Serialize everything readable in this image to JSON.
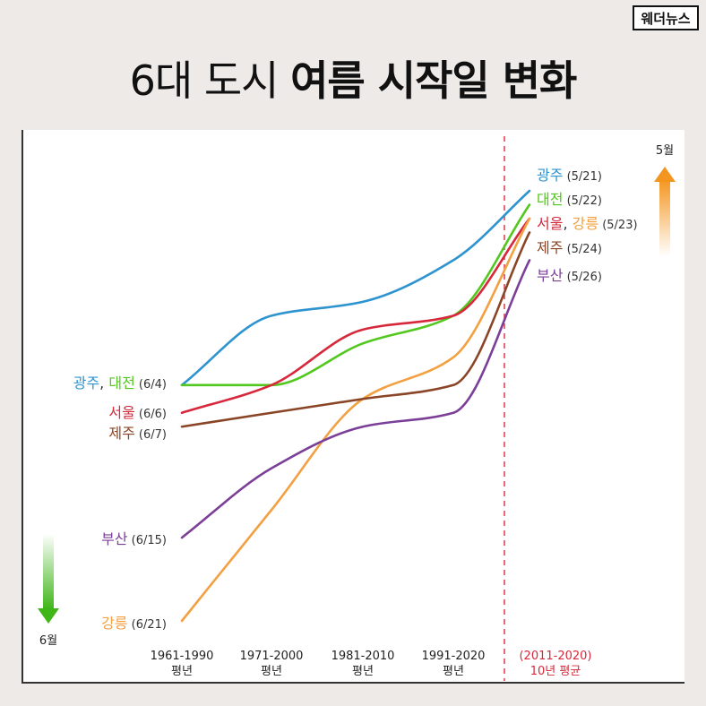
{
  "brand": "웨더뉴스",
  "title": {
    "regular": "6대 도시",
    "bold": "여름 시작일 변화"
  },
  "chart_data": {
    "type": "line",
    "categories": [
      "1961-1990 평년",
      "1971-2000 평년",
      "1981-2010 평년",
      "1991-2020 평년",
      "(2011-2020) 10년 평균"
    ],
    "x_labels": [
      {
        "line1": "1961-1990",
        "line2": "평년"
      },
      {
        "line1": "1971-2000",
        "line2": "평년"
      },
      {
        "line1": "1981-2010",
        "line2": "평년"
      },
      {
        "line1": "1991-2020",
        "line2": "평년"
      },
      {
        "line1": "(2011-2020)",
        "line2": "10년 평균"
      }
    ],
    "y_axis": {
      "top_label": "5월",
      "bottom_label": "6월",
      "inverted": true
    },
    "series": [
      {
        "name": "광주",
        "color": "#2e94d0",
        "values": [
          "06-04",
          "05-30",
          "05-29",
          "05-26",
          "05-21"
        ],
        "start_label": "(6/4)",
        "end_label": "(5/21)"
      },
      {
        "name": "대전",
        "color": "#52c81e",
        "values": [
          "06-04",
          "06-04",
          "06-01",
          "05-30",
          "05-22"
        ],
        "start_label": "(6/4)",
        "end_label": "(5/22)"
      },
      {
        "name": "서울",
        "color": "#d7283b",
        "values": [
          "06-06",
          "06-04",
          "05-31",
          "05-30",
          "05-23"
        ],
        "start_label": "(6/6)",
        "end_label": "(5/23)"
      },
      {
        "name": "강릉",
        "color": "#f2a042",
        "values": [
          "06-21",
          "06-13",
          "06-05",
          "06-02",
          "05-23"
        ],
        "start_label": "(6/21)",
        "end_label": "(5/23)"
      },
      {
        "name": "제주",
        "color": "#8a4526",
        "values": [
          "06-07",
          "06-06",
          "06-05",
          "06-04",
          "05-24"
        ],
        "start_label": "(6/7)",
        "end_label": "(5/24)"
      },
      {
        "name": "부산",
        "color": "#7b3f98",
        "values": [
          "06-15",
          "06-10",
          "06-07",
          "06-06",
          "05-26"
        ],
        "start_label": "(6/15)",
        "end_label": "(5/26)"
      }
    ],
    "separator": {
      "before_category": 4,
      "style": "dashed",
      "color": "#e0445a"
    },
    "legend": "inline"
  }
}
